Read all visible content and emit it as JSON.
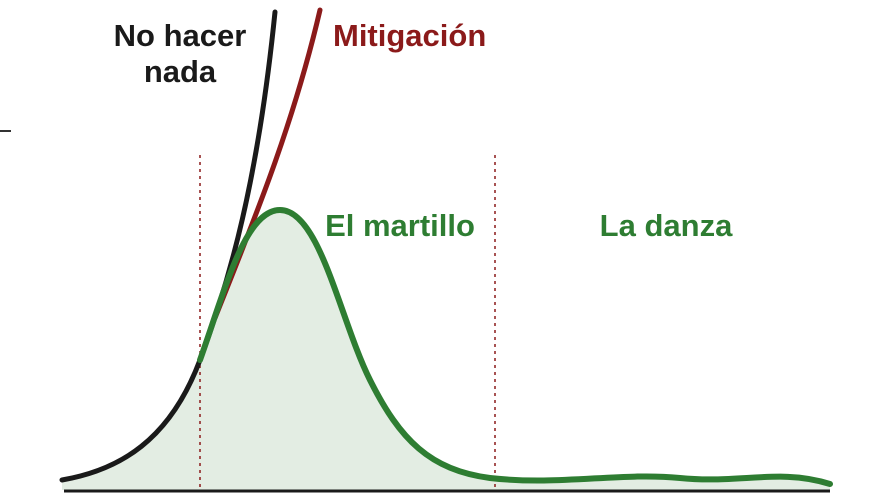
{
  "labels": {
    "do_nothing": [
      "No hacer",
      "nada"
    ],
    "mitigation": "Mitigación",
    "hammer": "El martillo",
    "dance": "La danza"
  }
}
